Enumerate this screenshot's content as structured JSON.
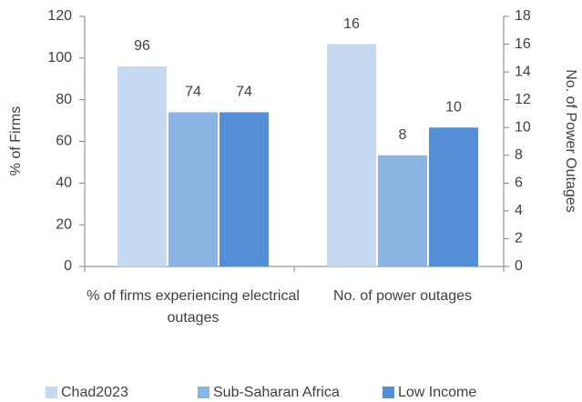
{
  "chart_data": {
    "type": "bar",
    "categories": [
      "% of firms experiencing electrical outages",
      "No. of power outages"
    ],
    "category_axis": [
      "y",
      "y2"
    ],
    "series": [
      {
        "name": "Chad2023",
        "color": "#c6d9f1",
        "values": [
          96,
          16
        ]
      },
      {
        "name": "Sub-Saharan Africa",
        "color": "#8db3e2",
        "values": [
          74,
          8
        ]
      },
      {
        "name": "Low Income",
        "color": "#558ed5",
        "values": [
          74,
          10
        ]
      }
    ],
    "ylabel": "% of Firms",
    "y2label": "No. of Power Outages",
    "ylim": [
      0,
      120
    ],
    "yticks": [
      0,
      20,
      40,
      60,
      80,
      100,
      120
    ],
    "y2lim": [
      0,
      18
    ],
    "y2ticks": [
      0,
      2,
      4,
      6,
      8,
      10,
      12,
      14,
      16,
      18
    ],
    "legend": "bottom"
  }
}
